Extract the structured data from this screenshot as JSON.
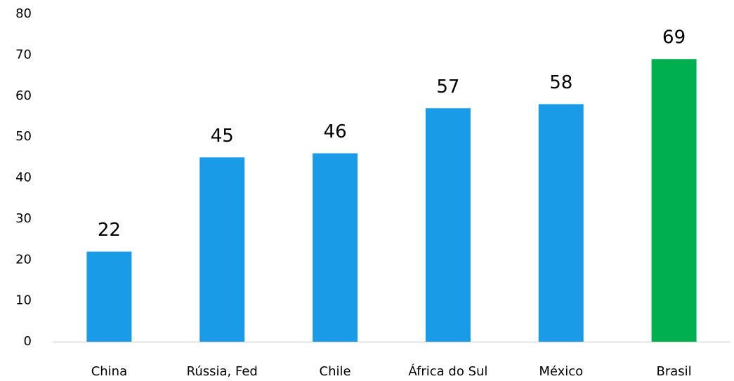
{
  "chart_data": {
    "type": "bar",
    "categories": [
      "China",
      "Rússia, Fed",
      "Chile",
      "África do Sul",
      "México",
      "Brasil"
    ],
    "values": [
      22,
      45,
      46,
      57,
      58,
      69
    ],
    "colors": [
      "#1a9be8",
      "#1a9be8",
      "#1a9be8",
      "#1a9be8",
      "#1a9be8",
      "#00b050"
    ],
    "ylim": [
      0,
      80
    ],
    "yticks": [
      0,
      10,
      20,
      30,
      40,
      50,
      60,
      70,
      80
    ],
    "grid": false
  }
}
